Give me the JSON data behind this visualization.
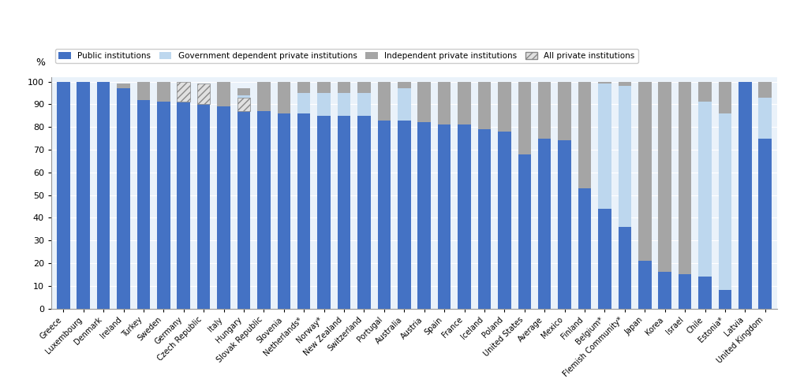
{
  "countries": [
    "Greece",
    "Luxembourg",
    "Denmark",
    "Ireland",
    "Turkey",
    "Sweden",
    "Germany",
    "Czech Republic",
    "Italy",
    "Hungary",
    "Slovak Republic",
    "Slovenia",
    "Netherlands*",
    "Norway*",
    "New Zealand",
    "Switzerland",
    "Portugal",
    "Australia",
    "Austria",
    "Spain",
    "France",
    "Iceland",
    "Poland",
    "United States",
    "Average",
    "Mexico",
    "Finland",
    "Belgium*",
    "Flemish Community*",
    "Japan",
    "Korea",
    "Israel",
    "Chile",
    "Estonia*",
    "Latvia",
    "United Kingdom"
  ],
  "public": [
    100,
    100,
    100,
    97,
    92,
    91,
    91,
    90,
    89,
    87,
    87,
    86,
    86,
    85,
    85,
    85,
    83,
    83,
    82,
    81,
    81,
    79,
    78,
    68,
    75,
    74,
    53,
    44,
    36,
    21,
    16,
    15,
    14,
    8,
    100,
    75
  ],
  "gov_dependent": [
    0,
    0,
    0,
    0,
    0,
    0,
    0,
    0,
    0,
    7,
    0,
    0,
    9,
    10,
    10,
    10,
    0,
    14,
    0,
    0,
    0,
    0,
    0,
    0,
    0,
    0,
    0,
    55,
    62,
    0,
    0,
    0,
    77,
    78,
    0,
    18
  ],
  "independent": [
    0,
    0,
    0,
    2,
    8,
    9,
    0,
    1,
    11,
    3,
    13,
    14,
    5,
    5,
    5,
    5,
    17,
    3,
    18,
    19,
    19,
    21,
    22,
    32,
    25,
    26,
    47,
    1,
    2,
    79,
    84,
    85,
    9,
    14,
    0,
    7
  ],
  "all_private_hatch": [
    0,
    0,
    0,
    0,
    0,
    0,
    9,
    9,
    0,
    6,
    0,
    0,
    0,
    0,
    0,
    0,
    0,
    0,
    0,
    0,
    0,
    0,
    0,
    0,
    0,
    0,
    0,
    0,
    0,
    0,
    0,
    0,
    0,
    0,
    0,
    0
  ],
  "colors": {
    "public": "#4472C4",
    "gov_dependent": "#BDD7EE",
    "independent": "#A5A5A5",
    "all_private_hatch_face": "#E0E0E0",
    "all_private_hatch_edge": "#888888"
  },
  "ylabel": "%",
  "ylim": [
    0,
    100
  ],
  "yticks": [
    0,
    10,
    20,
    30,
    40,
    50,
    60,
    70,
    80,
    90,
    100
  ],
  "legend_labels": [
    "Public institutions",
    "Government dependent private institutions",
    "Independent private institutions",
    "All private institutions"
  ],
  "bar_width": 0.65,
  "tick_fontsize": 7,
  "legend_fontsize": 7.5,
  "background_color": "#EAF2FA"
}
